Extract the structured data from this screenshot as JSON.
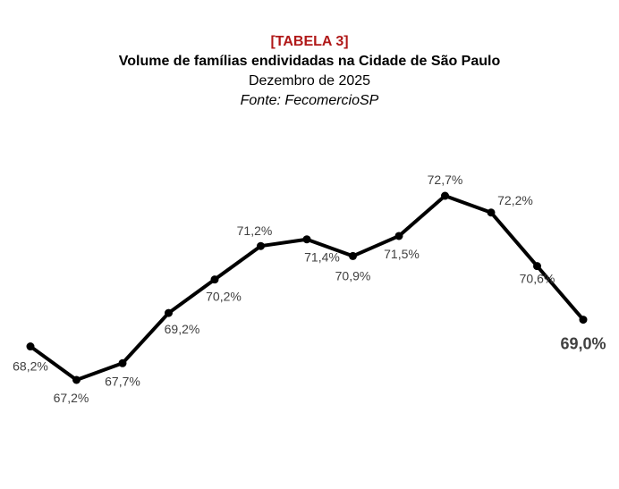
{
  "header": {
    "tag": "[TABELA 3]",
    "title": "Volume de famílias endividadas na Cidade de São Paulo",
    "subtitle": "Dezembro de 2025",
    "source": "Fonte: FecomercioSP"
  },
  "colors": {
    "tag": "#b01818",
    "line": "#000000",
    "labels": "#404040"
  },
  "chart_data": {
    "type": "line",
    "title": "Volume de famílias endividadas na Cidade de São Paulo",
    "subtitle": "Dezembro de 2025",
    "grid": false,
    "legend": "none",
    "ylim": [
      66,
      74
    ],
    "series": [
      {
        "values": [
          68.2,
          67.2,
          67.7,
          69.2,
          70.2,
          71.2,
          71.4,
          70.9,
          71.5,
          72.7,
          72.2,
          70.6,
          69.0
        ],
        "labels": [
          "68,2%",
          "67,2%",
          "67,7%",
          "69,2%",
          "70,2%",
          "71,2%",
          "71,4%",
          "70,9%",
          "71,5%",
          "72,7%",
          "72,2%",
          "70,6%",
          "69,0%"
        ]
      }
    ]
  }
}
